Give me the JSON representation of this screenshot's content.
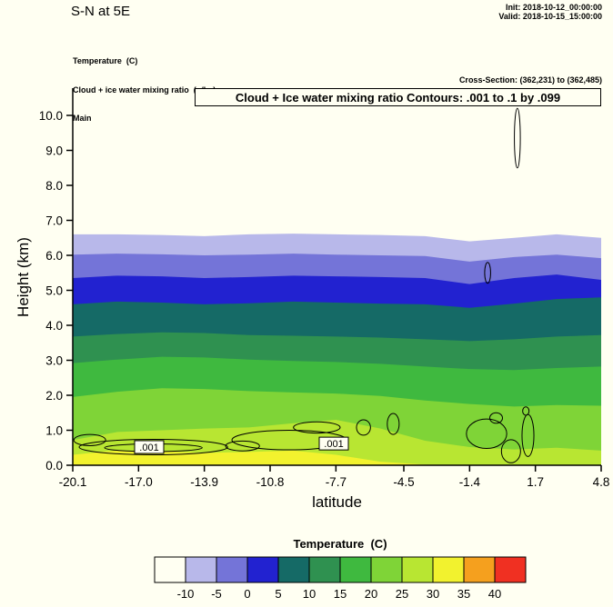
{
  "header": {
    "title": "S-N at 5E",
    "init": "Init: 2018-10-12_00:00:00",
    "valid": "Valid: 2018-10-15_15:00:00"
  },
  "legend": {
    "line1": "Temperature  (C)",
    "line2": "Cloud + ice water mixing ratio  (g/kg)",
    "line3": "Main"
  },
  "cross_section_note": "Cross-Section: (362,231) to (362,485)",
  "axes": {
    "x_label": "latitude",
    "y_label": "Height (km)"
  },
  "chart_data": {
    "type": "heatmap",
    "subtype": "filled-contour-vertical-cross-section",
    "title": "Cloud + Ice water mixing ratio Contours: .001 to .1 by .099",
    "xlabel": "latitude",
    "ylabel": "Height (km)",
    "xlim": [
      -20.1,
      4.8
    ],
    "ylim": [
      0,
      10.8
    ],
    "x_tick_labels": [
      "-20.1",
      "-17.0",
      "-13.9",
      "-10.8",
      "-7.7",
      "-4.5",
      "-1.4",
      "1.7",
      "4.8"
    ],
    "y_tick_labels": [
      "0.0",
      "1.0",
      "2.0",
      "3.0",
      "4.0",
      "5.0",
      "6.0",
      "7.0",
      "8.0",
      "9.0",
      "10.0"
    ],
    "palette": [
      "#fffff2",
      "#b8b8ea",
      "#7474d8",
      "#2222d0",
      "#156a66",
      "#2f9150",
      "#3fb93f",
      "#7fd437",
      "#b8e632",
      "#f2f22e",
      "#f5a01e",
      "#f03022"
    ],
    "band_lats": [
      -20.1,
      -18.0,
      -15.9,
      -13.9,
      -11.8,
      -9.7,
      -7.7,
      -5.6,
      -3.5,
      -1.4,
      0.7,
      2.7,
      4.8
    ],
    "bands": [
      {
        "level_c": -10,
        "heights_km": [
          6.6,
          6.6,
          6.58,
          6.55,
          6.6,
          6.62,
          6.6,
          6.58,
          6.55,
          6.4,
          6.5,
          6.6,
          6.5
        ]
      },
      {
        "level_c": -5,
        "heights_km": [
          6.02,
          6.05,
          6.03,
          6.0,
          6.02,
          6.05,
          6.02,
          6.0,
          5.98,
          5.82,
          5.95,
          6.02,
          5.92
        ]
      },
      {
        "level_c": 0,
        "heights_km": [
          5.35,
          5.42,
          5.4,
          5.35,
          5.38,
          5.42,
          5.4,
          5.38,
          5.35,
          5.18,
          5.35,
          5.45,
          5.3
        ]
      },
      {
        "level_c": 5,
        "heights_km": [
          4.6,
          4.68,
          4.65,
          4.6,
          4.63,
          4.68,
          4.65,
          4.62,
          4.6,
          4.5,
          4.62,
          4.75,
          4.8
        ]
      },
      {
        "level_c": 10,
        "heights_km": [
          3.68,
          3.75,
          3.8,
          3.78,
          3.72,
          3.7,
          3.68,
          3.65,
          3.6,
          3.55,
          3.6,
          3.68,
          3.72
        ]
      },
      {
        "level_c": 15,
        "heights_km": [
          2.92,
          3.02,
          3.1,
          3.08,
          3.02,
          2.98,
          2.95,
          2.9,
          2.82,
          2.75,
          2.72,
          2.78,
          2.82
        ]
      },
      {
        "level_c": 20,
        "heights_km": [
          1.95,
          2.1,
          2.2,
          2.18,
          2.12,
          2.08,
          2.05,
          1.98,
          1.85,
          1.75,
          1.68,
          1.72,
          1.7
        ]
      },
      {
        "level_c": 25,
        "heights_km": [
          0.72,
          0.95,
          1.0,
          1.05,
          1.08,
          1.2,
          1.3,
          1.05,
          0.7,
          0.52,
          0.45,
          0.5,
          0.42
        ]
      },
      {
        "level_c": 30,
        "heights_km": [
          0.3,
          0.42,
          0.4,
          0.35,
          0.38,
          0.42,
          0.3,
          0.1,
          0.02,
          0.0,
          0.0,
          0.0,
          0.0
        ]
      }
    ],
    "cloud_contours": {
      "label": ".001",
      "contour_spec": ".001 to .1 by .099",
      "ellipses": [
        [
          -16.3,
          0.52,
          3.5,
          0.22
        ],
        [
          -16.3,
          0.5,
          2.3,
          0.11
        ],
        [
          -19.3,
          0.72,
          0.75,
          0.16
        ],
        [
          -12.1,
          0.55,
          0.8,
          0.14
        ],
        [
          -9.9,
          0.72,
          2.7,
          0.28
        ],
        [
          -8.6,
          1.08,
          1.1,
          0.16
        ],
        [
          -6.4,
          1.08,
          0.33,
          0.22
        ],
        [
          -5.0,
          1.18,
          0.28,
          0.3
        ],
        [
          -0.6,
          0.9,
          0.95,
          0.42
        ],
        [
          -0.15,
          1.35,
          0.3,
          0.15
        ],
        [
          0.55,
          0.4,
          0.45,
          0.33
        ],
        [
          1.35,
          0.85,
          0.28,
          0.6
        ],
        [
          1.25,
          1.55,
          0.15,
          0.12
        ],
        [
          -0.55,
          5.5,
          0.14,
          0.3
        ],
        [
          0.85,
          9.35,
          0.14,
          0.85
        ]
      ],
      "label_positions": [
        [
          -16.5,
          0.52
        ],
        [
          -7.8,
          0.62
        ]
      ]
    },
    "colorbar": {
      "title": "Temperature  (C)",
      "tick_labels": [
        "-10",
        "-5",
        "0",
        "5",
        "10",
        "15",
        "20",
        "25",
        "30",
        "35",
        "40"
      ]
    }
  }
}
